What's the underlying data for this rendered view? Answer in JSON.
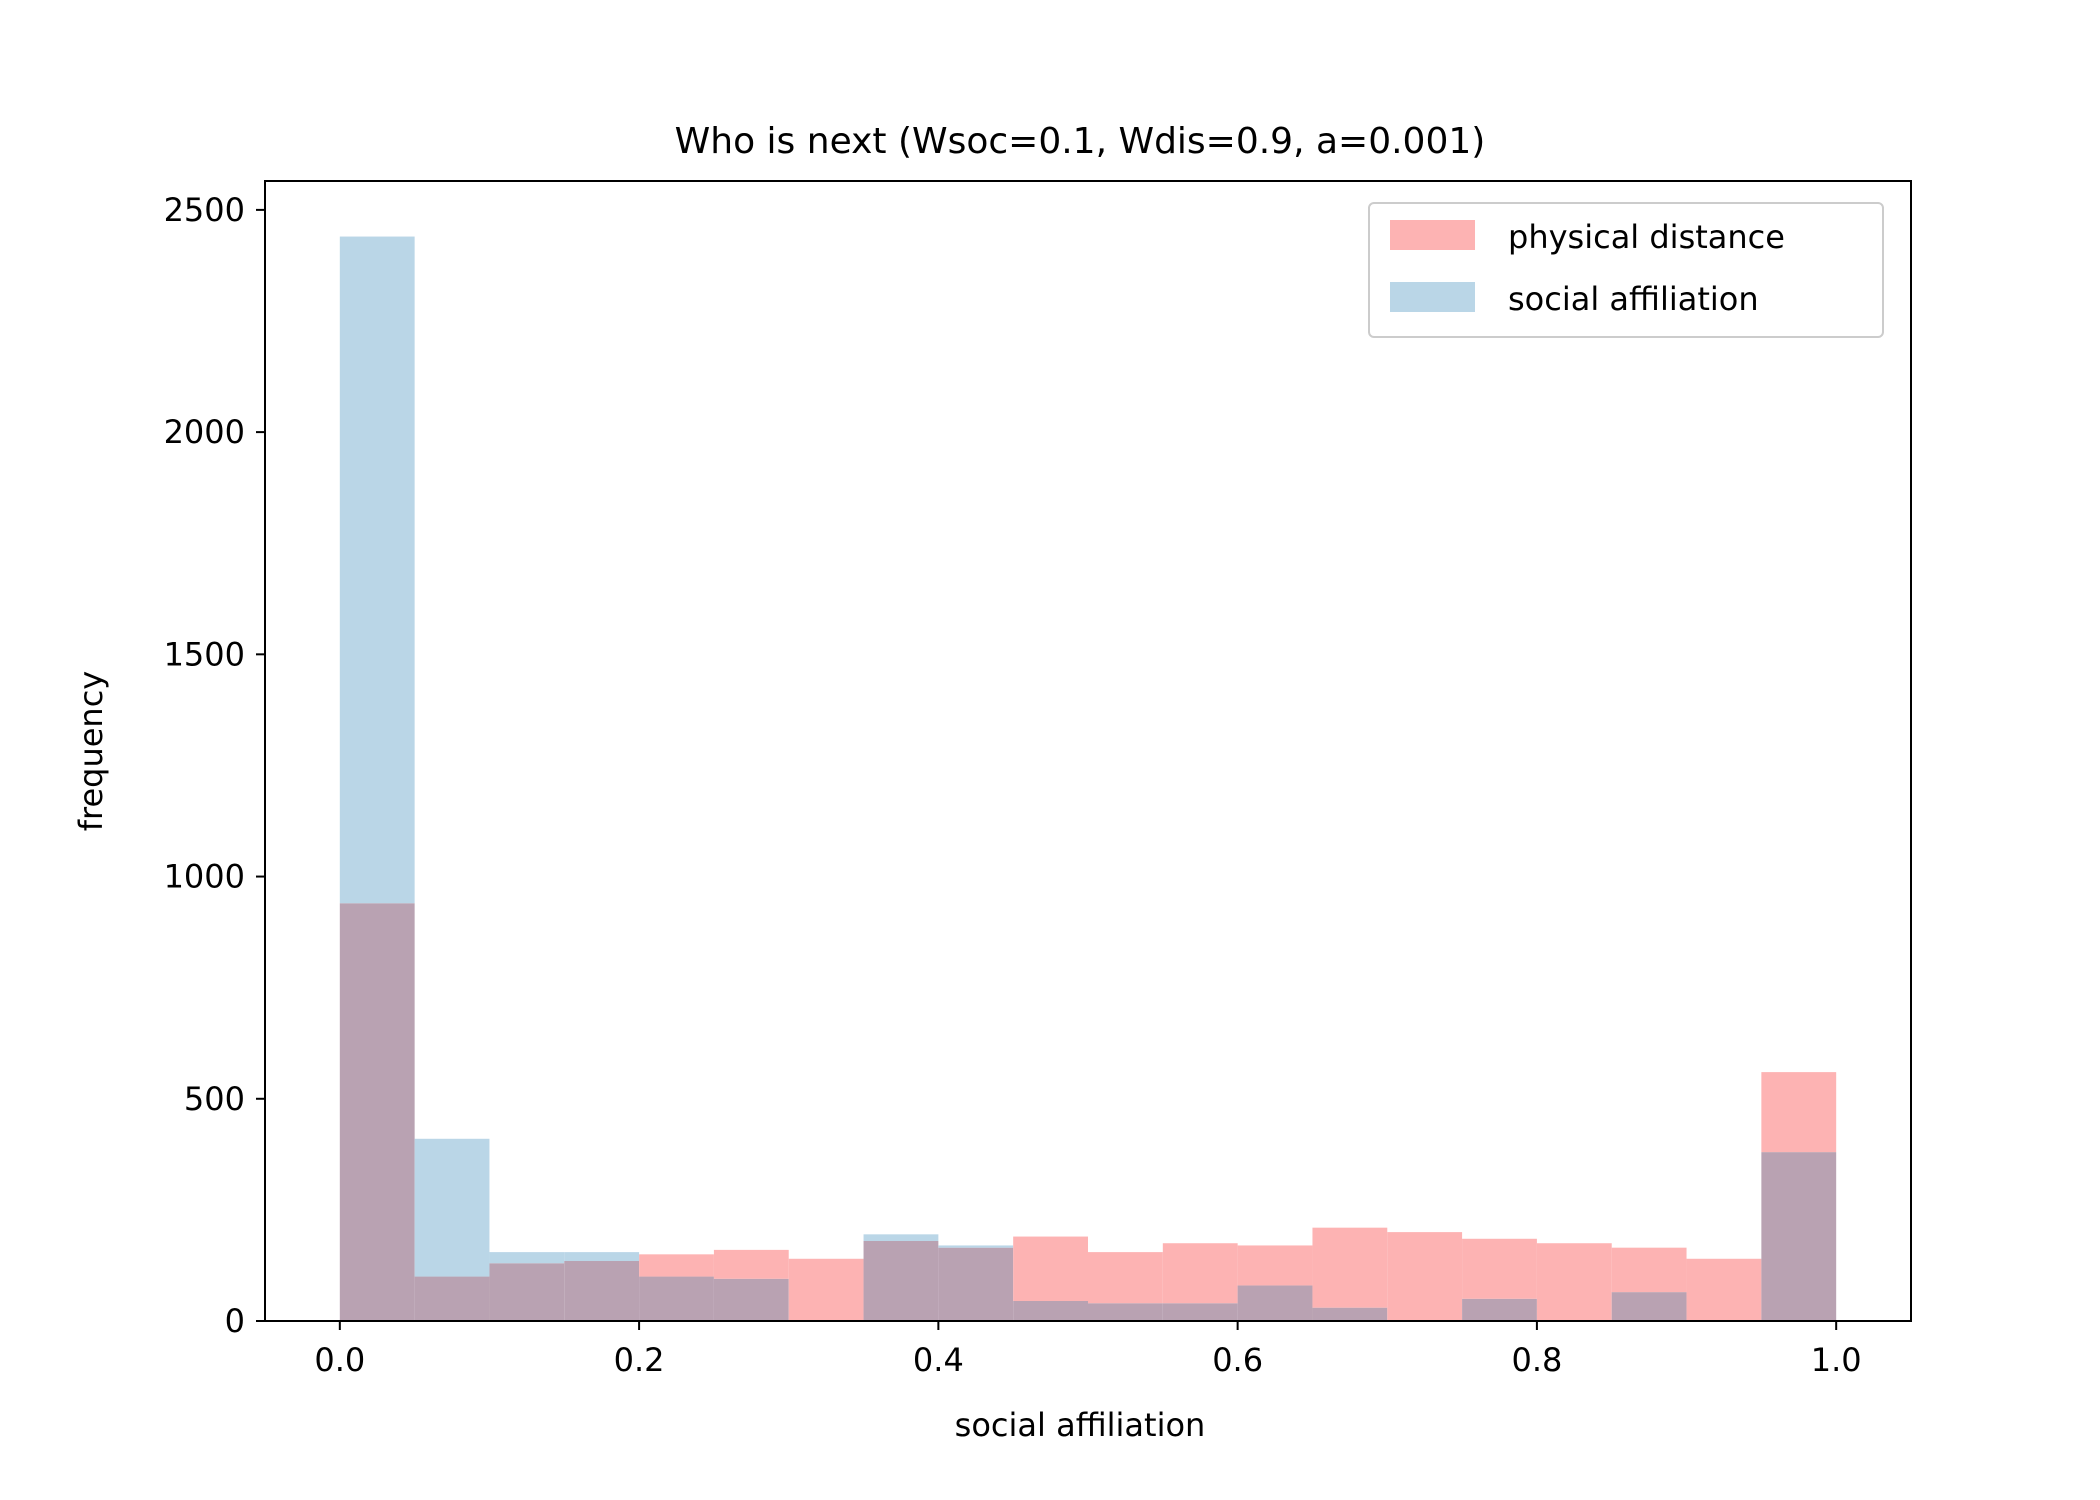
{
  "chart_data": {
    "type": "bar",
    "title": "Who is next (Wsoc=0.1, Wdis=0.9, a=0.001)",
    "xlabel": "social affiliation",
    "ylabel": "frequency",
    "xlim": [
      -0.05,
      1.05
    ],
    "ylim": [
      0,
      2565
    ],
    "bin_edges": [
      0.0,
      0.05,
      0.1,
      0.15,
      0.2,
      0.25,
      0.3,
      0.35,
      0.4,
      0.45,
      0.5,
      0.55,
      0.6,
      0.65,
      0.7,
      0.75,
      0.8,
      0.85,
      0.9,
      0.95,
      1.0
    ],
    "xticks": [
      0.0,
      0.2,
      0.4,
      0.6,
      0.8,
      1.0
    ],
    "xtick_labels": [
      "0.0",
      "0.2",
      "0.4",
      "0.6",
      "0.8",
      "1.0"
    ],
    "yticks": [
      0,
      500,
      1000,
      1500,
      2000,
      2500
    ],
    "ytick_labels": [
      "0",
      "500",
      "1000",
      "1500",
      "2000",
      "2500"
    ],
    "legend_position": "top-right",
    "series": [
      {
        "name": "physical distance",
        "color": "#fdb3b3",
        "values": [
          940,
          100,
          130,
          135,
          150,
          160,
          140,
          180,
          165,
          190,
          155,
          175,
          170,
          210,
          200,
          185,
          175,
          165,
          140,
          560
        ]
      },
      {
        "name": "social affiliation",
        "color": "#bad6e7",
        "values": [
          2440,
          410,
          155,
          155,
          100,
          95,
          0,
          195,
          170,
          45,
          40,
          40,
          80,
          30,
          0,
          50,
          0,
          65,
          0,
          380
        ]
      }
    ],
    "overlap_color": "#b9a2b2"
  }
}
